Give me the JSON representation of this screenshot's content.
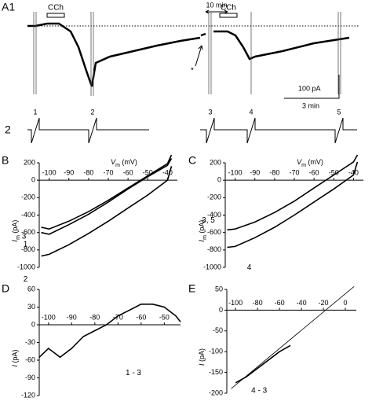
{
  "panel_a": {
    "panel": "A1",
    "channel2": "2",
    "cch": [
      "CCh",
      "CCh"
    ],
    "interval": "10 min",
    "asterisk": "*",
    "scale_y": "100 pA",
    "scale_x": "3 min",
    "markers": [
      "1",
      "2",
      "3",
      "4",
      "5"
    ]
  },
  "chart_data": [
    {
      "type": "line",
      "panel": "B",
      "xlabel": [
        "V",
        "m",
        " (mV)"
      ],
      "ylabel": [
        "I",
        "m",
        " (pA)"
      ],
      "x": [
        -104,
        -100,
        -90,
        -80,
        -70,
        -60,
        -50,
        -40,
        -38
      ],
      "series": [
        {
          "name": "3",
          "color": "#000000",
          "values": [
            -540,
            -560,
            -470,
            -360,
            -230,
            -90,
            50,
            190,
            290
          ]
        },
        {
          "name": "1",
          "color": "#000000",
          "values": [
            -600,
            -620,
            -510,
            -390,
            -250,
            -100,
            40,
            170,
            250
          ]
        },
        {
          "name": "2",
          "color": "#000000",
          "values": [
            -870,
            -850,
            -740,
            -610,
            -470,
            -320,
            -170,
            0,
            160
          ]
        }
      ],
      "xlim": [
        -105,
        -35
      ],
      "ylim": [
        -1000,
        200
      ],
      "xticks": [
        -100,
        -90,
        -80,
        -70,
        -60,
        -50,
        -40
      ],
      "yticks": [
        -1000,
        -800,
        -600,
        -400,
        -200,
        0,
        200
      ]
    },
    {
      "type": "line",
      "panel": "C",
      "xlabel": [
        "V",
        "m",
        " (mV)"
      ],
      "ylabel": [
        "I",
        "m",
        " (pA)"
      ],
      "x": [
        -104,
        -100,
        -90,
        -80,
        -70,
        -60,
        -50,
        -40,
        -38
      ],
      "series": [
        {
          "name": "3, 5",
          "color": "#000000",
          "values": [
            -570,
            -560,
            -480,
            -370,
            -240,
            -90,
            60,
            210,
            290
          ]
        },
        {
          "name": "4",
          "color": "#000000",
          "values": [
            -770,
            -760,
            -660,
            -540,
            -400,
            -250,
            -100,
            60,
            210
          ]
        }
      ],
      "xlim": [
        -105,
        -35
      ],
      "ylim": [
        -1000,
        200
      ],
      "xticks": [
        -100,
        -90,
        -80,
        -70,
        -60,
        -50,
        -40
      ],
      "yticks": [
        -1000,
        -800,
        -600,
        -400,
        -200,
        0,
        200
      ]
    },
    {
      "type": "line",
      "panel": "D",
      "ylabel": [
        "I",
        " (pA)"
      ],
      "x": [
        -104,
        -100,
        -95,
        -90,
        -85,
        -80,
        -75,
        -70,
        -65,
        -60,
        -55,
        -50,
        -45,
        -43
      ],
      "series": [
        {
          "name": "1 - 3",
          "color": "#000000",
          "values": [
            -55,
            -40,
            -55,
            -40,
            -20,
            -10,
            0,
            15,
            25,
            35,
            35,
            30,
            15,
            5
          ]
        }
      ],
      "xlim": [
        -104,
        -43
      ],
      "ylim": [
        -120,
        60
      ],
      "xticks": [
        -100,
        -90,
        -80,
        -70,
        -60,
        -50
      ],
      "yticks": [
        -120,
        -90,
        -60,
        -30,
        0,
        30,
        60
      ]
    },
    {
      "type": "line",
      "panel": "E",
      "ylabel": [
        "I",
        " (pA)"
      ],
      "x": [
        -100,
        -90,
        -80,
        -70,
        -60,
        -50
      ],
      "series": [
        {
          "name": "4 - 3",
          "color": "#000000",
          "values": [
            -175,
            -160,
            -140,
            -120,
            -100,
            -85
          ]
        },
        {
          "color": "#000000",
          "x": [
            -104,
            8
          ],
          "values": [
            -189,
            57
          ]
        }
      ],
      "xlim": [
        -108,
        10
      ],
      "ylim": [
        -200,
        50
      ],
      "xticks": [
        -100,
        -80,
        -60,
        -40,
        -20,
        0
      ],
      "yticks": [
        -200,
        -150,
        -100,
        -50,
        0,
        50
      ]
    }
  ]
}
